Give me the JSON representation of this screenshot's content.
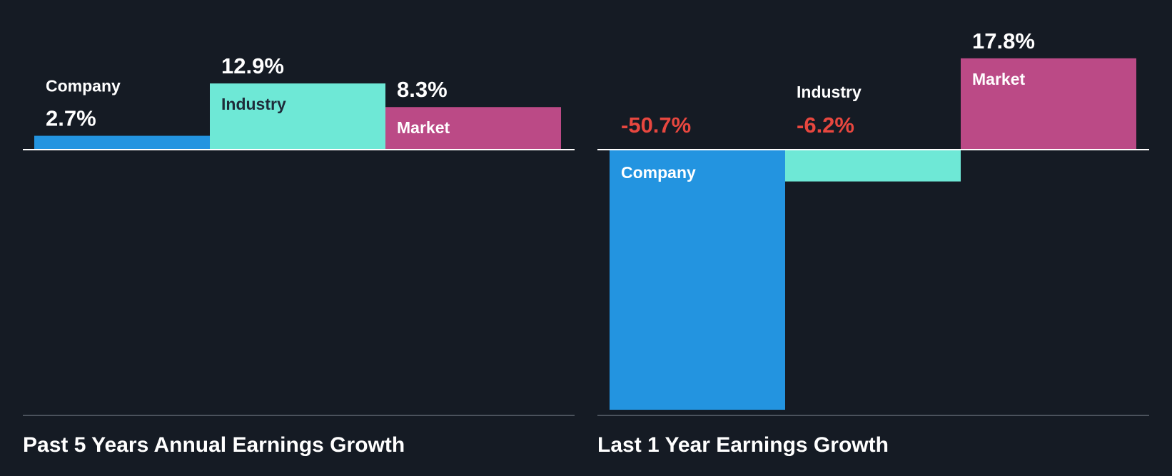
{
  "colors": {
    "background": "#151b24",
    "company": "#2394e0",
    "industry": "#6ee8d6",
    "market": "#bb4a86",
    "positive_value": "#ffffff",
    "negative_value": "#e8473f",
    "label_on_dark": "#ffffff",
    "label_on_industry": "#1e2b3a",
    "zero_line": "#ffffff",
    "baseline": "#4b525c"
  },
  "chart_data": [
    {
      "type": "bar",
      "title": "Past 5 Years Annual Earnings Growth",
      "categories": [
        "Company",
        "Industry",
        "Market"
      ],
      "values": [
        2.7,
        12.9,
        8.3
      ],
      "value_labels": [
        "2.7%",
        "12.9%",
        "8.3%"
      ],
      "unit": "%",
      "ylim": [
        -50.7,
        17.8
      ],
      "grid": false
    },
    {
      "type": "bar",
      "title": "Last 1 Year Earnings Growth",
      "categories": [
        "Company",
        "Industry",
        "Market"
      ],
      "values": [
        -50.7,
        -6.2,
        17.8
      ],
      "value_labels": [
        "-50.7%",
        "-6.2%",
        "17.8%"
      ],
      "unit": "%",
      "ylim": [
        -50.7,
        17.8
      ],
      "grid": false
    }
  ]
}
